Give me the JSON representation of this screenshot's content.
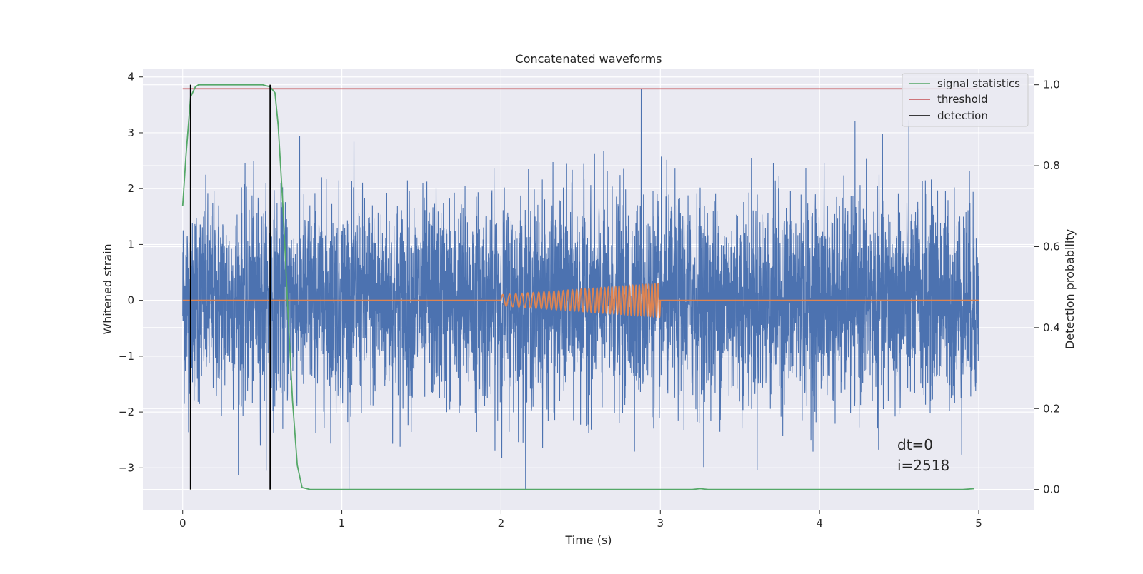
{
  "chart_data": {
    "type": "line",
    "title": "Concatenated waveforms",
    "xlabel": "Time (s)",
    "ylabel": "Whitened strain",
    "ylabel_right": "Detection probability",
    "xlim": [
      -0.25,
      5.35
    ],
    "ylim": [
      -3.75,
      4.15
    ],
    "ylim_right": [
      -0.05,
      1.04
    ],
    "x_ticks": [
      0,
      1,
      2,
      3,
      4,
      5
    ],
    "y_ticks": [
      -3,
      -2,
      -1,
      0,
      1,
      2,
      3,
      4
    ],
    "y_ticks_right": [
      0.0,
      0.2,
      0.4,
      0.6,
      0.8,
      1.0
    ],
    "y_tick_labels": [
      "−3",
      "−2",
      "−1",
      "0",
      "1",
      "2",
      "3",
      "4"
    ],
    "y_tick_labels_right": [
      "0.0",
      "0.2",
      "0.4",
      "0.6",
      "0.8",
      "1.0"
    ],
    "x_tick_labels": [
      "0",
      "1",
      "2",
      "3",
      "4",
      "5"
    ],
    "grid": true,
    "legend_position": "top-right",
    "background_color": "#eaeaf2",
    "series": [
      {
        "key": "noise",
        "axis": "left",
        "color": "#4c72b0",
        "x_range": [
          0,
          5
        ],
        "description_samples": 5000,
        "noise_std": 0.9,
        "peak_value": 3.78,
        "peak_x": 2.88
      },
      {
        "key": "injected",
        "axis": "left",
        "color": "#dd8452",
        "x_range": [
          0,
          5
        ],
        "chirp_start": 2.0,
        "chirp_end": 3.0,
        "chirp_amp_start": 0.1,
        "chirp_amp_end": 0.3,
        "chirp_cycles": 38
      },
      {
        "key": "signal_statistics",
        "name": "signal statistics",
        "axis": "right",
        "color": "#55a868",
        "points": [
          [
            0.0,
            0.7
          ],
          [
            0.02,
            0.82
          ],
          [
            0.05,
            0.97
          ],
          [
            0.08,
            0.995
          ],
          [
            0.1,
            1.0
          ],
          [
            0.5,
            1.0
          ],
          [
            0.55,
            0.995
          ],
          [
            0.58,
            0.98
          ],
          [
            0.6,
            0.9
          ],
          [
            0.63,
            0.7
          ],
          [
            0.66,
            0.45
          ],
          [
            0.69,
            0.22
          ],
          [
            0.72,
            0.06
          ],
          [
            0.75,
            0.005
          ],
          [
            0.8,
            0.0
          ],
          [
            3.2,
            0.0
          ],
          [
            3.25,
            0.002
          ],
          [
            3.3,
            0.0
          ],
          [
            4.9,
            0.0
          ],
          [
            4.97,
            0.002
          ]
        ]
      },
      {
        "key": "threshold",
        "name": "threshold",
        "axis": "right",
        "color": "#c44e52",
        "value": 0.99,
        "x_range": [
          0,
          5
        ]
      },
      {
        "key": "detection",
        "name": "detection",
        "axis": "right",
        "color": "#000000",
        "x_positions": [
          0.05,
          0.55
        ],
        "y_range": [
          0.0,
          1.0
        ]
      }
    ],
    "legend": [
      "signal statistics",
      "threshold",
      "detection"
    ],
    "annotations": [
      "dt=0",
      "i=2518"
    ]
  }
}
